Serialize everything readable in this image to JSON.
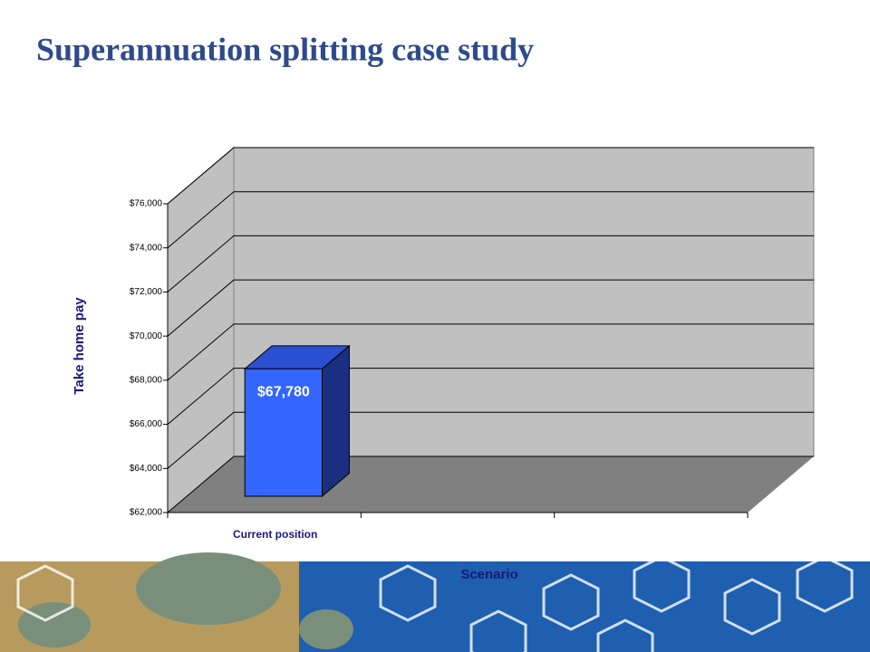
{
  "chart_data": {
    "type": "bar",
    "title": "Superannuation splitting case study",
    "x_label": "Scenario",
    "y_label": "Take home pay",
    "categories": [
      "Current position",
      null,
      null
    ],
    "values": [
      67780,
      null,
      null
    ],
    "value_labels": [
      "$67,780",
      null,
      null
    ],
    "color": "#3366ff",
    "ylim": [
      62000,
      76000
    ],
    "yticks": [
      {
        "value": 62000,
        "label": "$62,000"
      },
      {
        "value": 64000,
        "label": "$64,000"
      },
      {
        "value": 66000,
        "label": "$66,000"
      },
      {
        "value": 68000,
        "label": "$68,000"
      },
      {
        "value": 70000,
        "label": "$70,000"
      },
      {
        "value": 72000,
        "label": "$72,000"
      },
      {
        "value": 74000,
        "label": "$74,000"
      },
      {
        "value": 76000,
        "label": "$76,000"
      }
    ],
    "grid": true
  }
}
